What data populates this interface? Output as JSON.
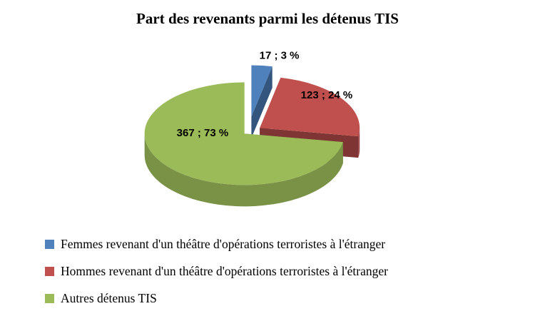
{
  "chart_data": {
    "type": "pie",
    "style": "3d-exploded-pie",
    "title": "Part des revenants parmi les détenus TIS",
    "legend_position": "bottom-left",
    "slices": [
      {
        "label": "Femmes revenant d'un théâtre d'opérations terroristes à l'étranger",
        "value": 17,
        "percent": 3,
        "data_label": "17 ; 3 %",
        "color": "#4F81BD"
      },
      {
        "label": "Hommes revenant d'un théâtre d'opérations terroristes à l'étranger",
        "value": 123,
        "percent": 24,
        "data_label": "123 ; 24 %",
        "color": "#C0504D"
      },
      {
        "label": "Autres détenus TIS",
        "value": 367,
        "percent": 73,
        "data_label": "367 ; 73 %",
        "color": "#9BBB59"
      }
    ]
  }
}
